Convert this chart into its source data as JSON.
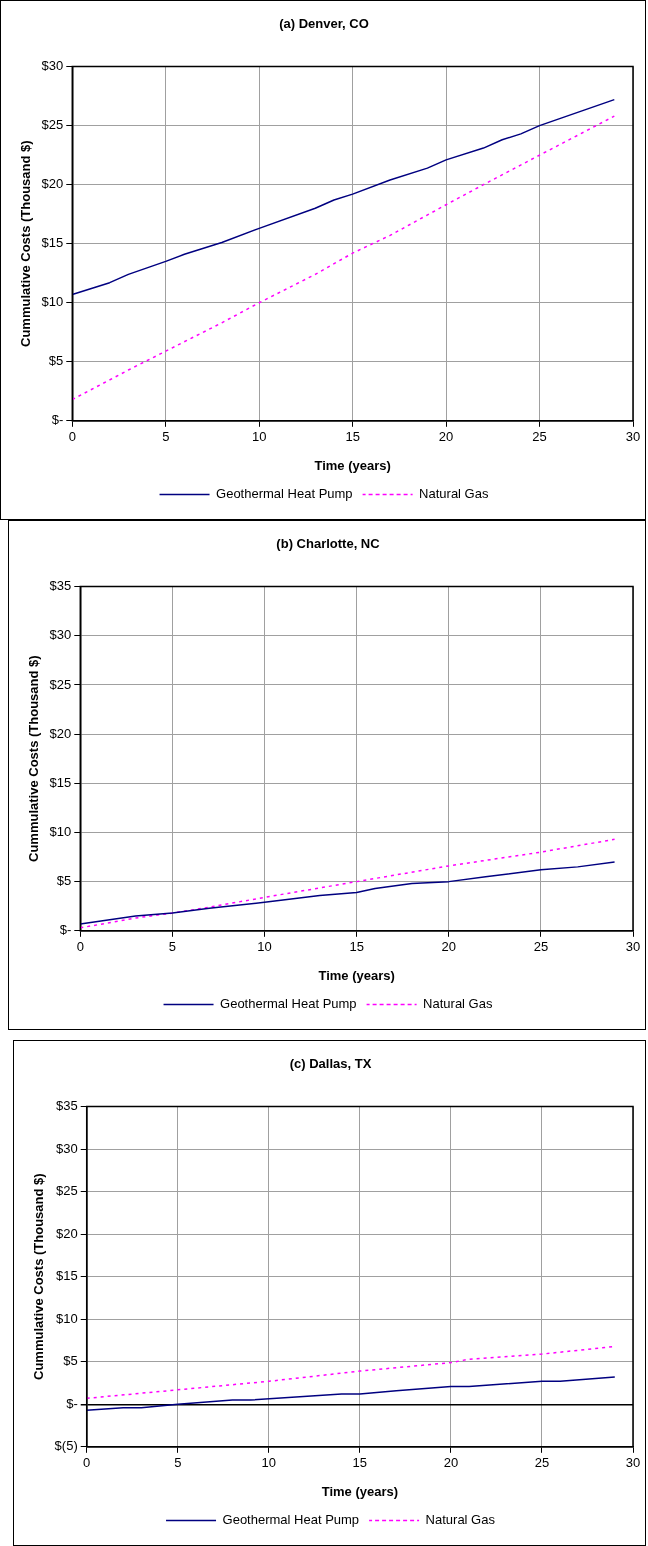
{
  "chart_data": [
    {
      "type": "line",
      "title": "(a) Denver, CO",
      "xlabel": "Time (years)",
      "ylabel": "Cummulative Costs (Thousand $)",
      "xlim": [
        0,
        30
      ],
      "xticks": [
        0,
        5,
        10,
        15,
        20,
        25,
        30
      ],
      "ylim": [
        0,
        30
      ],
      "yticks": [
        {
          "value": 0,
          "label": "$-"
        },
        {
          "value": 5,
          "label": "$5"
        },
        {
          "value": 10,
          "label": "$10"
        },
        {
          "value": 15,
          "label": "$15"
        },
        {
          "value": 20,
          "label": "$20"
        },
        {
          "value": 25,
          "label": "$25"
        },
        {
          "value": 30,
          "label": "$30"
        }
      ],
      "grid": true,
      "legend": "bottom",
      "marker": "none",
      "series": [
        {
          "name": "Geothermal Heat Pump",
          "color": "#000080",
          "line_style": "solid",
          "x": [
            0,
            2,
            3,
            5,
            6,
            8,
            10,
            13,
            14,
            15,
            17,
            19,
            20,
            22,
            23,
            24,
            25,
            29
          ],
          "values": [
            10.7,
            11.7,
            12.4,
            13.5,
            14.1,
            15.1,
            16.3,
            18.0,
            18.7,
            19.2,
            20.4,
            21.4,
            22.1,
            23.1,
            23.8,
            24.3,
            25.0,
            27.2
          ]
        },
        {
          "name": "Natural Gas",
          "color": "#ff00ff",
          "line_style": "dotted",
          "x": [
            0,
            3,
            5,
            8,
            10,
            13,
            15,
            17,
            20,
            22,
            25,
            29
          ],
          "values": [
            1.8,
            4.3,
            5.9,
            8.3,
            10.0,
            12.4,
            14.2,
            15.7,
            18.3,
            20.0,
            22.5,
            25.8
          ]
        }
      ]
    },
    {
      "type": "line",
      "title": "(b) Charlotte, NC",
      "xlabel": "Time (years)",
      "ylabel": "Cummulative Costs (Thousand $)",
      "xlim": [
        0,
        30
      ],
      "xticks": [
        0,
        5,
        10,
        15,
        20,
        25,
        30
      ],
      "ylim": [
        0,
        35
      ],
      "yticks": [
        {
          "value": 0,
          "label": "$-"
        },
        {
          "value": 5,
          "label": "$5"
        },
        {
          "value": 10,
          "label": "$10"
        },
        {
          "value": 15,
          "label": "$15"
        },
        {
          "value": 20,
          "label": "$20"
        },
        {
          "value": 25,
          "label": "$25"
        },
        {
          "value": 30,
          "label": "$30"
        },
        {
          "value": 35,
          "label": "$35"
        }
      ],
      "grid": true,
      "legend": "bottom",
      "marker": "none",
      "series": [
        {
          "name": "Geothermal Heat Pump",
          "color": "#000080",
          "line_style": "solid",
          "x": [
            0,
            3,
            5,
            7,
            10,
            13,
            15,
            16,
            18,
            20,
            22,
            25,
            27,
            29
          ],
          "values": [
            0.7,
            1.5,
            1.8,
            2.3,
            2.9,
            3.6,
            3.9,
            4.3,
            4.8,
            5.0,
            5.5,
            6.2,
            6.5,
            7.0
          ]
        },
        {
          "name": "Natural Gas",
          "color": "#ff00ff",
          "line_style": "dotted",
          "x": [
            0,
            3,
            5,
            7,
            10,
            15,
            20,
            25,
            29
          ],
          "values": [
            0.3,
            1.3,
            1.8,
            2.4,
            3.4,
            5.0,
            6.6,
            8.0,
            9.3
          ]
        }
      ]
    },
    {
      "type": "line",
      "title": "(c) Dallas, TX",
      "xlabel": "Time (years)",
      "ylabel": "Cummulative Costs (Thousand $)",
      "xlim": [
        0,
        30
      ],
      "xticks": [
        0,
        5,
        10,
        15,
        20,
        25,
        30
      ],
      "ylim": [
        -5,
        35
      ],
      "yticks": [
        {
          "value": -5,
          "label": "$(5)"
        },
        {
          "value": 0,
          "label": "$-"
        },
        {
          "value": 5,
          "label": "$5"
        },
        {
          "value": 10,
          "label": "$10"
        },
        {
          "value": 15,
          "label": "$15"
        },
        {
          "value": 20,
          "label": "$20"
        },
        {
          "value": 25,
          "label": "$25"
        },
        {
          "value": 30,
          "label": "$30"
        },
        {
          "value": 35,
          "label": "$35"
        }
      ],
      "grid": true,
      "legend": "bottom",
      "marker": "none",
      "series": [
        {
          "name": "Geothermal Heat Pump",
          "color": "#000080",
          "line_style": "solid",
          "x": [
            0,
            2,
            3,
            5,
            8,
            9,
            14,
            15,
            17,
            20,
            21,
            25,
            26,
            29
          ],
          "values": [
            -0.7,
            -0.4,
            -0.4,
            0.0,
            0.5,
            0.5,
            1.2,
            1.2,
            1.6,
            2.1,
            2.1,
            2.7,
            2.7,
            3.2
          ]
        },
        {
          "name": "Natural Gas",
          "color": "#ff00ff",
          "line_style": "dotted",
          "x": [
            0,
            4,
            5,
            8,
            10,
            15,
            20,
            21,
            25,
            29
          ],
          "values": [
            0.7,
            1.5,
            1.7,
            2.3,
            2.7,
            3.9,
            4.9,
            5.3,
            5.9,
            6.8
          ]
        }
      ]
    }
  ]
}
